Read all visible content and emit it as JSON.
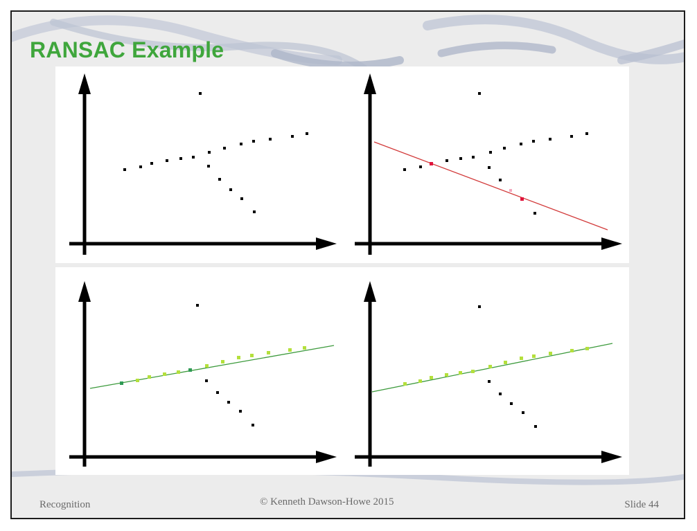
{
  "slide": {
    "title": "RANSAC Example",
    "footer": {
      "left": "Recognition",
      "center": "© Kenneth Dawson-Howe 2015",
      "right": "Slide 44"
    }
  },
  "figure": {
    "description_color": {
      "points": "#000000",
      "candidate_line": "#d23a3a",
      "sample_points": "#e0143c",
      "near_point": "#f4a7bd",
      "consensus_line": "#3c9a3c",
      "consensus_points": "#b4e03c",
      "consensus_sample_points": "#2f9a55"
    },
    "panels": [
      "all-points",
      "random-sample-line",
      "sample-consensus-line",
      "best-fit-line"
    ]
  }
}
